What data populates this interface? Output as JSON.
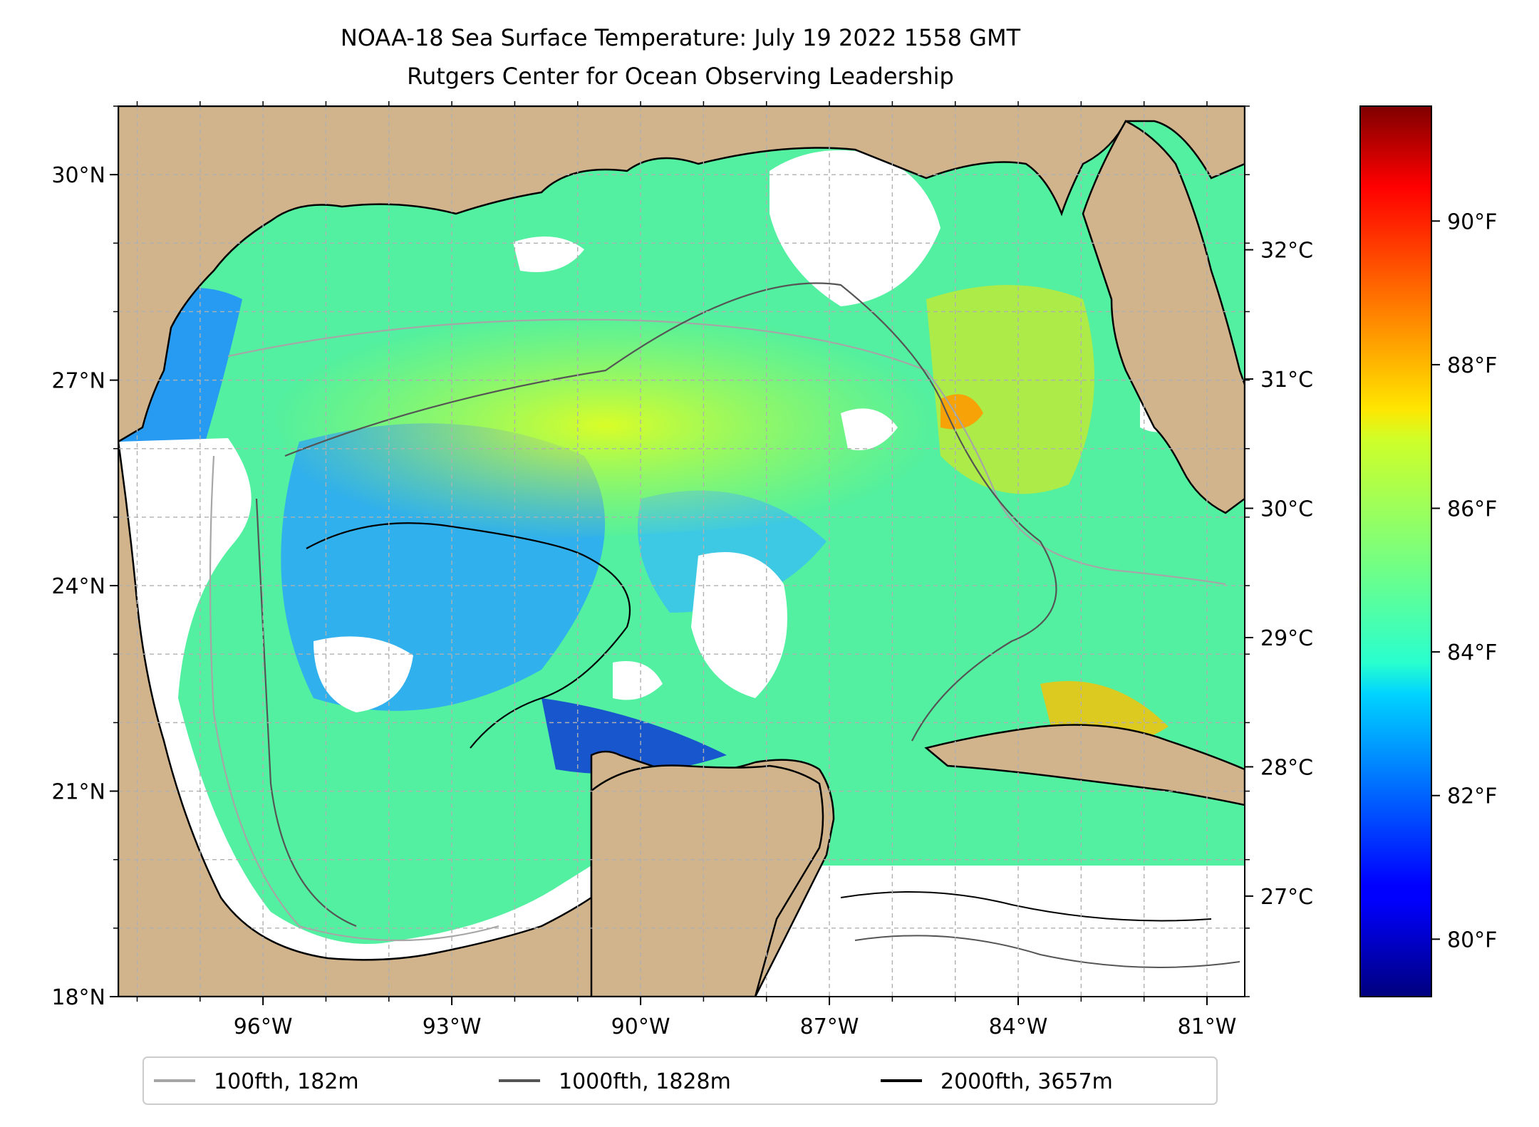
{
  "title": {
    "line1": "NOAA-18 Sea Surface Temperature: July 19 2022 1558 GMT",
    "line2": "Rutgers Center for Ocean Observing Leadership"
  },
  "map": {
    "region": "Gulf of Mexico",
    "lon_range": [
      -98.3,
      -80.4
    ],
    "lat_range": [
      18.0,
      31.0
    ],
    "gridlines": true,
    "x_ticks": [
      {
        "lon": -96,
        "label": "96°W"
      },
      {
        "lon": -93,
        "label": "93°W"
      },
      {
        "lon": -90,
        "label": "90°W"
      },
      {
        "lon": -87,
        "label": "87°W"
      },
      {
        "lon": -84,
        "label": "84°W"
      },
      {
        "lon": -81,
        "label": "81°W"
      }
    ],
    "y_ticks": [
      {
        "lat": 30,
        "label": "30°N"
      },
      {
        "lat": 27,
        "label": "27°N"
      },
      {
        "lat": 24,
        "label": "24°N"
      },
      {
        "lat": 21,
        "label": "21°N"
      },
      {
        "lat": 18,
        "label": "18°N"
      }
    ],
    "colors": {
      "land": "#d2b48c",
      "cloud_mask": "#ffffff",
      "coastline": "#000000"
    }
  },
  "colorbar": {
    "colormap": "jet",
    "fahrenheit_range": [
      79.2,
      91.6
    ],
    "celsius_ticks": [
      {
        "value": 32,
        "label": "32°C"
      },
      {
        "value": 31,
        "label": "31°C"
      },
      {
        "value": 30,
        "label": "30°C"
      },
      {
        "value": 29,
        "label": "29°C"
      },
      {
        "value": 28,
        "label": "28°C"
      },
      {
        "value": 27,
        "label": "27°C"
      }
    ],
    "fahrenheit_ticks": [
      {
        "value": 90,
        "label": "90°F"
      },
      {
        "value": 88,
        "label": "88°F"
      },
      {
        "value": 86,
        "label": "86°F"
      },
      {
        "value": 84,
        "label": "84°F"
      },
      {
        "value": 82,
        "label": "82°F"
      },
      {
        "value": 80,
        "label": "80°F"
      }
    ]
  },
  "legend": {
    "placement": "bottom-center",
    "items": [
      {
        "label": "100fth, 182m",
        "color": "#a6a6a6"
      },
      {
        "label": "1000fth, 1828m",
        "color": "#555555"
      },
      {
        "label": "2000fth, 3657m",
        "color": "#000000"
      }
    ]
  }
}
